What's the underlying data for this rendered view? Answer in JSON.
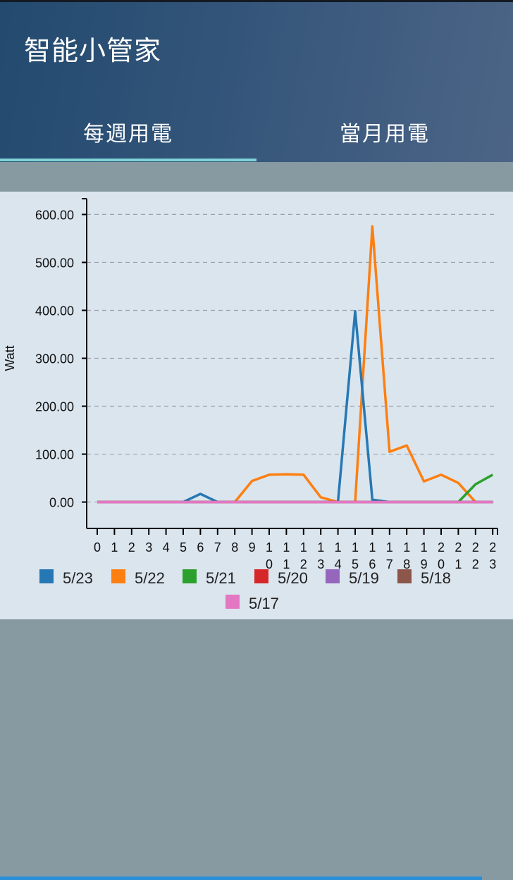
{
  "app": {
    "title": "智能小管家"
  },
  "tabs": [
    {
      "label": "每週用電",
      "selected": true
    },
    {
      "label": "當月用電",
      "selected": false
    }
  ],
  "colors": {
    "tab_indicator": "#7fd3d6",
    "header_start": "#234a6f",
    "header_end": "#4c6586"
  },
  "chart_data": {
    "type": "line",
    "ylabel": "Watt",
    "xlabel": "",
    "ylim": [
      -55,
      630
    ],
    "yticks": [
      0,
      100,
      200,
      300,
      400,
      500,
      600
    ],
    "ytick_labels": [
      "0.00",
      "100.00",
      "200.00",
      "300.00",
      "400.00",
      "500.00",
      "600.00"
    ],
    "x": [
      0,
      1,
      2,
      3,
      4,
      5,
      6,
      7,
      8,
      9,
      10,
      11,
      12,
      13,
      14,
      15,
      16,
      17,
      18,
      19,
      20,
      21,
      22,
      23
    ],
    "grid": "horizontal-dashed",
    "legend_position": "bottom",
    "series": [
      {
        "name": "5/23",
        "color": "#2678b4",
        "values": [
          0,
          0,
          0,
          0,
          0,
          0,
          17,
          0,
          0,
          0,
          0,
          0,
          0,
          0,
          0,
          398,
          5,
          0,
          0,
          0,
          0,
          0,
          0,
          0
        ]
      },
      {
        "name": "5/22",
        "color": "#fd7f11",
        "values": [
          0,
          0,
          0,
          0,
          0,
          0,
          0,
          0,
          0,
          44,
          57,
          58,
          57,
          10,
          0,
          0,
          575,
          105,
          118,
          43,
          57,
          40,
          0,
          null
        ]
      },
      {
        "name": "5/21",
        "color": "#2ca02c",
        "values": [
          0,
          0,
          0,
          0,
          0,
          0,
          0,
          0,
          0,
          0,
          0,
          0,
          0,
          0,
          0,
          0,
          0,
          0,
          0,
          0,
          0,
          0,
          37,
          57
        ]
      },
      {
        "name": "5/20",
        "color": "#d62728",
        "values": [
          0,
          0,
          0,
          0,
          0,
          0,
          0,
          0,
          0,
          0,
          0,
          0,
          0,
          0,
          0,
          0,
          0,
          0,
          0,
          0,
          0,
          0,
          0,
          0
        ]
      },
      {
        "name": "5/19",
        "color": "#9467bd",
        "values": [
          0,
          0,
          0,
          0,
          0,
          0,
          0,
          0,
          0,
          0,
          0,
          0,
          0,
          0,
          0,
          0,
          0,
          0,
          0,
          0,
          0,
          0,
          0,
          0
        ]
      },
      {
        "name": "5/18",
        "color": "#8c564b",
        "values": [
          0,
          0,
          0,
          0,
          0,
          0,
          0,
          0,
          0,
          0,
          0,
          0,
          0,
          0,
          0,
          0,
          0,
          0,
          0,
          0,
          0,
          0,
          0,
          0
        ]
      },
      {
        "name": "5/17",
        "color": "#e377c2",
        "values": [
          0,
          0,
          0,
          0,
          0,
          0,
          0,
          0,
          0,
          0,
          0,
          0,
          0,
          0,
          0,
          0,
          0,
          0,
          0,
          0,
          0,
          0,
          0,
          0
        ]
      }
    ]
  }
}
